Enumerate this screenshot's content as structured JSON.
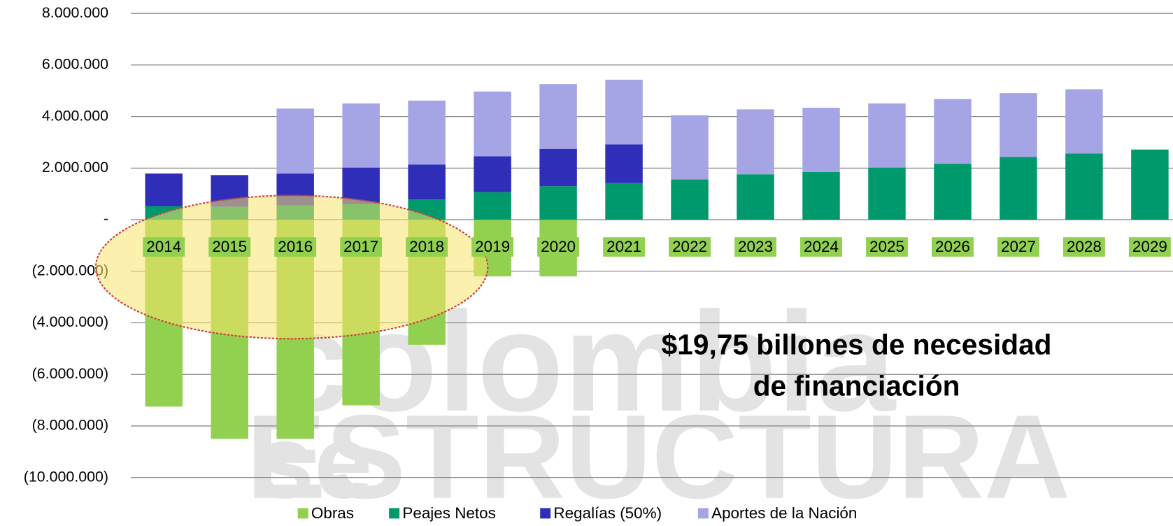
{
  "chart_data": {
    "type": "stacked_bar",
    "watermark": [
      "colombia",
      "se",
      "ESTRUCTURA"
    ],
    "annotation": [
      "$19,75 billones de necesidad",
      "de financiación"
    ],
    "categories": [
      "2014",
      "2015",
      "2016",
      "2017",
      "2018",
      "2019",
      "2020",
      "2021",
      "2022",
      "2023",
      "2024",
      "2025",
      "2026",
      "2027",
      "2028",
      "2029"
    ],
    "series": [
      {
        "name": "Obras",
        "color": "#92d050",
        "values": [
          -7250000,
          -8500000,
          -8500000,
          -7200000,
          -4850000,
          -2200000,
          -2200000,
          0,
          0,
          0,
          0,
          0,
          0,
          0,
          0,
          0
        ]
      },
      {
        "name": "Peajes Netos",
        "color": "#00996b",
        "values": [
          520000,
          500000,
          550000,
          600000,
          780000,
          1070000,
          1300000,
          1420000,
          1560000,
          1760000,
          1850000,
          2020000,
          2170000,
          2430000,
          2570000,
          2720000
        ]
      },
      {
        "name": "Regalías (50%)",
        "color": "#2e2eb8",
        "values": [
          1270000,
          1230000,
          1240000,
          1420000,
          1360000,
          1390000,
          1450000,
          1500000,
          0,
          0,
          0,
          0,
          0,
          0,
          0,
          0
        ]
      },
      {
        "name": "Aportes de la Nación",
        "color": "#a5a5e6",
        "values": [
          0,
          0,
          2520000,
          2490000,
          2480000,
          2510000,
          2510000,
          2510000,
          2490000,
          2520000,
          2490000,
          2490000,
          2510000,
          2480000,
          2490000,
          0
        ]
      }
    ],
    "ylim": [
      -10000000,
      8000000
    ],
    "yticks": [
      {
        "value": -10000000,
        "label": "(10.000.000)"
      },
      {
        "value": -8000000,
        "label": "(8.000.000)"
      },
      {
        "value": -6000000,
        "label": "(6.000.000)"
      },
      {
        "value": -4000000,
        "label": "(4.000.000)"
      },
      {
        "value": -2000000,
        "label": "(2.000.000)"
      },
      {
        "value": 0,
        "label": "-"
      },
      {
        "value": 2000000,
        "label": "2.000.000"
      },
      {
        "value": 4000000,
        "label": "4.000.000"
      },
      {
        "value": 6000000,
        "label": "6.000.000"
      },
      {
        "value": 8000000,
        "label": "8.000.000"
      }
    ],
    "grid": true,
    "legend": "bottom"
  }
}
